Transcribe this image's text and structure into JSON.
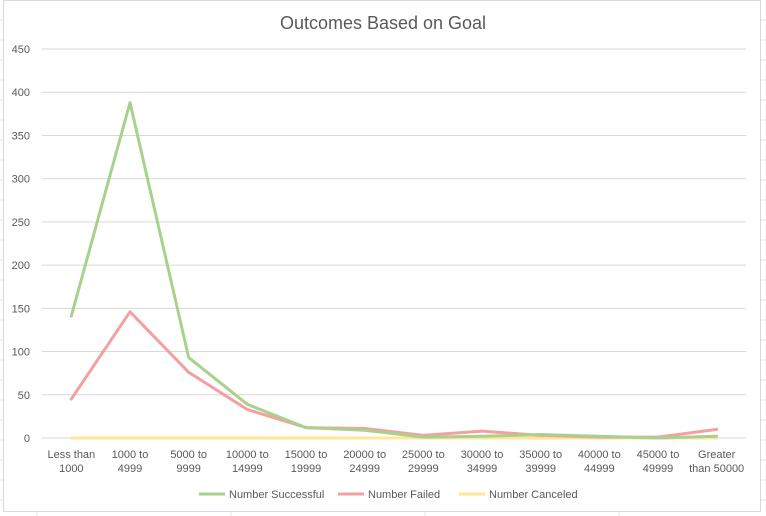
{
  "chart_data": {
    "type": "line",
    "title": "Outcomes Based on Goal",
    "xlabel": "",
    "ylabel": "",
    "categories": [
      [
        "Less than",
        "1000"
      ],
      [
        "1000 to",
        "4999"
      ],
      [
        "5000 to",
        "9999"
      ],
      [
        "10000 to",
        "14999"
      ],
      [
        "15000 to",
        "19999"
      ],
      [
        "20000 to",
        "24999"
      ],
      [
        "25000 to",
        "29999"
      ],
      [
        "30000 to",
        "34999"
      ],
      [
        "35000 to",
        "39999"
      ],
      [
        "40000 to",
        "44999"
      ],
      [
        "45000 to",
        "49999"
      ],
      [
        "Greater",
        "than 50000"
      ]
    ],
    "ylim": [
      0,
      450
    ],
    "yticks": [
      0,
      50,
      100,
      150,
      200,
      250,
      300,
      350,
      400,
      450
    ],
    "grid": true,
    "legend_position": "bottom",
    "series": [
      {
        "name": "Number Successful",
        "color": "#a9d18e",
        "values": [
          141,
          388,
          93,
          39,
          12,
          9,
          1,
          2,
          4,
          2,
          0,
          2
        ]
      },
      {
        "name": "Number Failed",
        "color": "#f4a0a0",
        "values": [
          45,
          146,
          76,
          33,
          12,
          11,
          3,
          8,
          3,
          1,
          1,
          10
        ]
      },
      {
        "name": "Number Canceled",
        "color": "#ffe699",
        "values": [
          0,
          0,
          0,
          0,
          0,
          0,
          0,
          0,
          0,
          0,
          0,
          0
        ]
      }
    ]
  }
}
